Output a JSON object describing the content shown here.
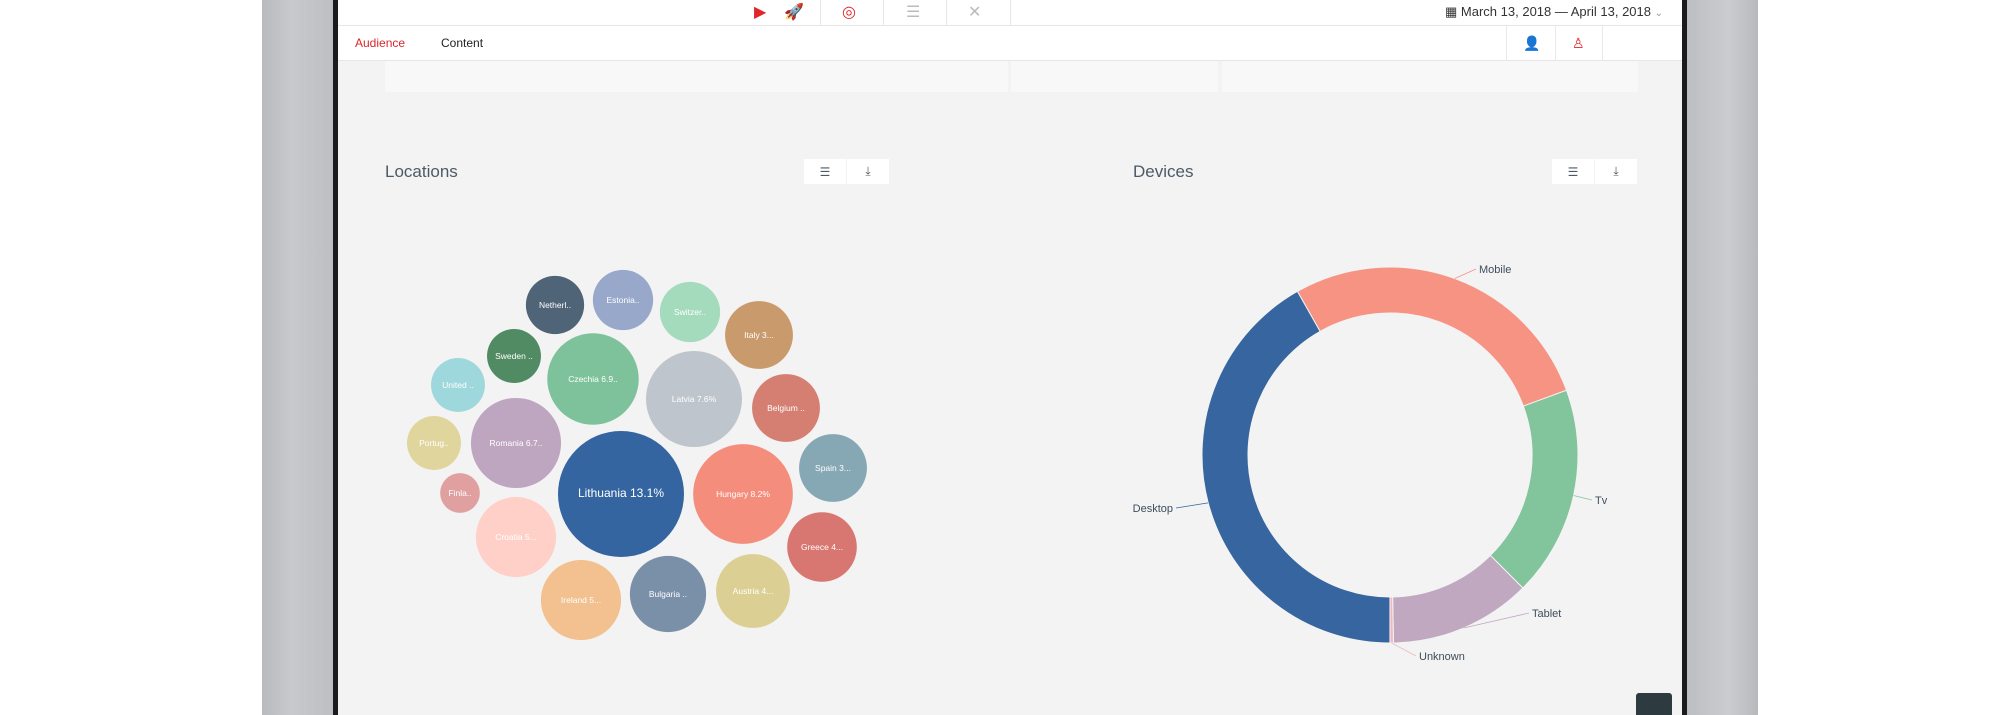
{
  "topbar": {
    "icons": [
      "youtube-icon",
      "rocket-icon",
      "target-icon",
      "checklist-icon",
      "tools-icon"
    ],
    "date_range": "March 13, 2018 — April 13, 2018",
    "accent": "#e0262b"
  },
  "tabs": [
    {
      "label": "Audience",
      "active": true
    },
    {
      "label": "Content",
      "active": false
    }
  ],
  "tab_icons": [
    "user-settings-icon",
    "user-icon"
  ],
  "locations": {
    "title": "Locations",
    "buttons": [
      "list-icon",
      "download-icon"
    ]
  },
  "devices": {
    "title": "Devices",
    "buttons": [
      "list-icon",
      "download-icon"
    ]
  },
  "chart_data": [
    {
      "type": "bubble",
      "title": "Locations",
      "unit": "%",
      "items": [
        {
          "label": "Lithuania 13.1%",
          "value": 13.1,
          "color": "#3465a0"
        },
        {
          "label": "Hungary 8.2%",
          "value": 8.2,
          "color": "#f58d7c"
        },
        {
          "label": "Latvia 7.6%",
          "value": 7.6,
          "color": "#bfc5cc"
        },
        {
          "label": "Czechia 6.9..",
          "value": 6.9,
          "color": "#7dc29a"
        },
        {
          "label": "Romania 6.7..",
          "value": 6.7,
          "color": "#bea6c0"
        },
        {
          "label": "Croatia 5...",
          "value": 5.3,
          "color": "#ffd0c8"
        },
        {
          "label": "Ireland 5...",
          "value": 5.3,
          "color": "#f3c08f"
        },
        {
          "label": "Bulgaria ..",
          "value": 4.8,
          "color": "#7a8fa8"
        },
        {
          "label": "Austria 4...",
          "value": 4.5,
          "color": "#dccf94"
        },
        {
          "label": "Greece 4...",
          "value": 4.0,
          "color": "#d87671"
        },
        {
          "label": "Italy 3...",
          "value": 3.8,
          "color": "#c99a6c"
        },
        {
          "label": "Belgium ..",
          "value": 3.8,
          "color": "#d47f72"
        },
        {
          "label": "Spain 3...",
          "value": 3.8,
          "color": "#86a7b4"
        },
        {
          "label": "Estonia..",
          "value": 3.0,
          "color": "#97a8cb"
        },
        {
          "label": "Switzer..",
          "value": 3.0,
          "color": "#a3dbbc"
        },
        {
          "label": "Netherl..",
          "value": 2.8,
          "color": "#4f6477"
        },
        {
          "label": "Sweden ..",
          "value": 2.4,
          "color": "#508b64"
        },
        {
          "label": "United ..",
          "value": 2.4,
          "color": "#9ed8dc"
        },
        {
          "label": "Portug..",
          "value": 2.4,
          "color": "#e0d59c"
        },
        {
          "label": "Finla..",
          "value": 1.3,
          "color": "#e1a0a0"
        }
      ]
    },
    {
      "type": "pie",
      "donut": true,
      "title": "Devices",
      "categories": [
        "Mobile",
        "Tv",
        "Tablet",
        "Unknown",
        "Desktop"
      ],
      "values": [
        27.6,
        18.1,
        12.2,
        0.3,
        41.8
      ],
      "colors": [
        "#f79383",
        "#82c49b",
        "#c1a8c1",
        "#f0b8c0",
        "#36659f"
      ]
    }
  ]
}
